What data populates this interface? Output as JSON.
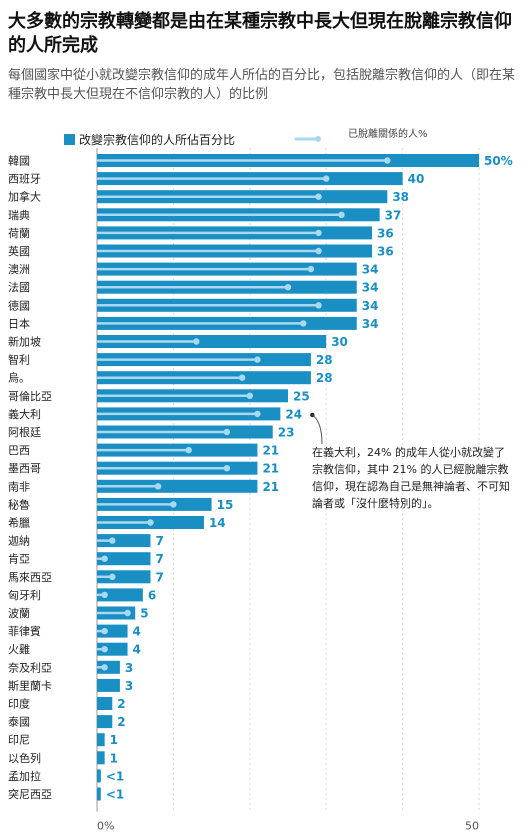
{
  "title": "大多數的宗教轉變都是由在某種宗教中長大但現在脫離宗教信仰的人所完成",
  "subtitle": "每個國家中從小就改變宗教信仰的成年人所佔的百分比，包括脫離宗教信仰的人（即在某種宗教中長大但現在不信仰宗教的人）的比例",
  "annotation": "在義大利，24% 的成年人從小就改變了宗教信仰，其中 21% 的人已經脫離宗教信仰，現在認為自己是無神論者、不可知論者或「沒什麼特別的」。",
  "colors": {
    "bar": "#1a8fc3",
    "dot_line": "#a9d8f0",
    "value_text": "#1a8fc3",
    "gridline": "#d8d8d8"
  },
  "chart_data": {
    "type": "bar",
    "orientation": "horizontal",
    "xlim": [
      0,
      50
    ],
    "x_ticks": [
      0,
      50
    ],
    "x_tick_labels": [
      "0%",
      "50"
    ],
    "grid": true,
    "legend_placement": "top",
    "categories": [
      "韓國",
      "西班牙",
      "加拿大",
      "瑞典",
      "荷蘭",
      "英國",
      "澳洲",
      "法國",
      "德國",
      "日本",
      "新加坡",
      "智利",
      "烏。",
      "哥倫比亞",
      "義大利",
      "阿根廷",
      "巴西",
      "墨西哥",
      "南非",
      "秘魯",
      "希臘",
      "迦納",
      "肯亞",
      "馬來西亞",
      "匈牙利",
      "波蘭",
      "菲律賓",
      "火雞",
      "奈及利亞",
      "斯里蘭卡",
      "印度",
      "泰國",
      "印尼",
      "以色列",
      "孟加拉",
      "突尼西亞"
    ],
    "value_labels": [
      "50%",
      "40",
      "38",
      "37",
      "36",
      "36",
      "34",
      "34",
      "34",
      "34",
      "30",
      "28",
      "28",
      "25",
      "24",
      "23",
      "21",
      "21",
      "21",
      "15",
      "14",
      "7",
      "7",
      "7",
      "6",
      "5",
      "4",
      "4",
      "3",
      "3",
      "2",
      "2",
      "1",
      "1",
      "<1",
      "<1"
    ],
    "series": [
      {
        "name": "改變宗教信仰的人所佔百分比",
        "type": "bar",
        "values": [
          50,
          40,
          38,
          37,
          36,
          36,
          34,
          34,
          34,
          34,
          30,
          28,
          28,
          25,
          24,
          23,
          21,
          21,
          21,
          15,
          14,
          7,
          7,
          7,
          6,
          5,
          4,
          4,
          3,
          3,
          2,
          2,
          1,
          1,
          0.5,
          0.5
        ]
      },
      {
        "name": "已脫離關係的人%",
        "type": "dot",
        "values": [
          38,
          30,
          29,
          32,
          29,
          29,
          28,
          25,
          29,
          27,
          13,
          21,
          19,
          20,
          21,
          17,
          12,
          17,
          8,
          10,
          7,
          2,
          1,
          2,
          1,
          4,
          1,
          1,
          1,
          null,
          null,
          null,
          null,
          null,
          null,
          null
        ]
      }
    ]
  }
}
